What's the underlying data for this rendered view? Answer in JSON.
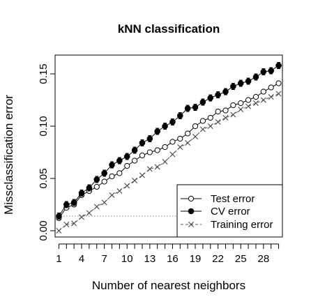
{
  "chart_data": {
    "type": "line",
    "title": "kNN classification",
    "xlabel": "Number of nearest neighbors",
    "ylabel": "Missclassification error",
    "xlim": [
      0.5,
      30.5
    ],
    "ylim": [
      -0.006,
      0.168
    ],
    "x_tick_labels": [
      "1",
      "4",
      "7",
      "10",
      "13",
      "16",
      "19",
      "22",
      "25",
      "28"
    ],
    "y_tick_labels": [
      "0.00",
      "0.05",
      "0.10",
      "0.15"
    ],
    "x": [
      1,
      2,
      3,
      4,
      5,
      6,
      7,
      8,
      9,
      10,
      11,
      12,
      13,
      14,
      15,
      16,
      17,
      18,
      19,
      20,
      21,
      22,
      23,
      24,
      25,
      26,
      27,
      28,
      29,
      30
    ],
    "reference_line": {
      "y": 0.014,
      "style": "dotted",
      "color": "#9e9e9e"
    },
    "legend": {
      "position": "bottom-right"
    },
    "series": [
      {
        "name": "Test error",
        "marker": "open-circle",
        "line": "solid",
        "values": [
          0.012,
          0.022,
          0.025,
          0.034,
          0.038,
          0.042,
          0.047,
          0.052,
          0.055,
          0.062,
          0.067,
          0.072,
          0.075,
          0.077,
          0.08,
          0.085,
          0.088,
          0.093,
          0.1,
          0.105,
          0.108,
          0.114,
          0.115,
          0.12,
          0.122,
          0.125,
          0.128,
          0.133,
          0.137,
          0.141
        ]
      },
      {
        "name": "CV error",
        "marker": "filled-circle",
        "line": "solid",
        "errorbars": true,
        "error": 0.003,
        "values": [
          0.014,
          0.025,
          0.027,
          0.036,
          0.041,
          0.049,
          0.055,
          0.063,
          0.067,
          0.071,
          0.077,
          0.084,
          0.088,
          0.095,
          0.1,
          0.104,
          0.11,
          0.117,
          0.118,
          0.123,
          0.127,
          0.13,
          0.133,
          0.138,
          0.141,
          0.143,
          0.147,
          0.152,
          0.153,
          0.158
        ]
      },
      {
        "name": "Training error",
        "marker": "cross",
        "line": "dashed",
        "values": [
          0.0,
          0.006,
          0.007,
          0.013,
          0.017,
          0.023,
          0.027,
          0.034,
          0.038,
          0.043,
          0.048,
          0.053,
          0.059,
          0.061,
          0.066,
          0.073,
          0.08,
          0.084,
          0.09,
          0.097,
          0.1,
          0.104,
          0.108,
          0.111,
          0.116,
          0.119,
          0.122,
          0.125,
          0.128,
          0.131
        ]
      }
    ]
  }
}
